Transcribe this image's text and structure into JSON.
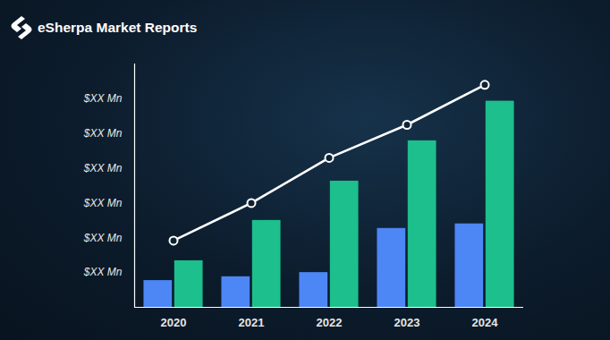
{
  "chart_data": {
    "type": "bar",
    "title": "eSherpa Market Reports",
    "categories": [
      "2020",
      "2021",
      "2022",
      "2023",
      "2024"
    ],
    "series": [
      {
        "color": "#4d86f5",
        "values": [
          0.77,
          0.88,
          1.0,
          2.27,
          2.4
        ]
      },
      {
        "color": "#1dbf8c",
        "values": [
          1.34,
          2.5,
          3.63,
          4.79,
          5.93
        ]
      },
      {
        "type": "line",
        "color": "#ffffff",
        "marker": "circle",
        "values": [
          1.92,
          3.0,
          4.3,
          5.25,
          6.4
        ]
      }
    ],
    "ylim": [
      0,
      7
    ],
    "yticks": [
      {
        "value": 1,
        "label": "$XX Mn"
      },
      {
        "value": 2,
        "label": "$XX Mn"
      },
      {
        "value": 3,
        "label": "$XX Mn"
      },
      {
        "value": 4,
        "label": "$XX Mn"
      },
      {
        "value": 5,
        "label": "$XX Mn"
      },
      {
        "value": 6,
        "label": "$XX Mn"
      }
    ],
    "grid": false
  }
}
